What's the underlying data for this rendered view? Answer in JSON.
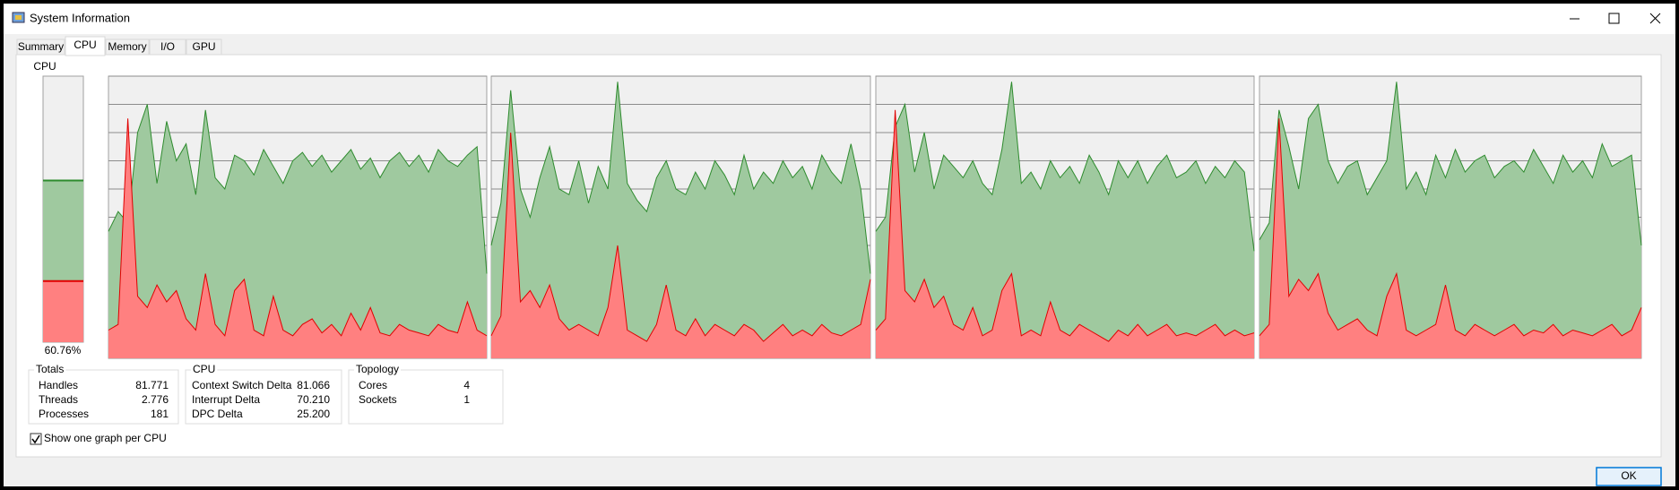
{
  "window": {
    "title": "System Information",
    "ok": "OK"
  },
  "tabs": [
    "Summary",
    "CPU",
    "Memory",
    "I/O",
    "GPU"
  ],
  "cpu_meter": {
    "label": "CPU",
    "value": 60.76,
    "value_label": "60.76%",
    "kernel": 23
  },
  "chart_data": [
    {
      "type": "area",
      "ylim": [
        0,
        100
      ],
      "yticks": [
        0,
        10,
        20,
        30,
        40,
        50,
        60,
        70,
        80,
        90,
        100
      ],
      "grid": true,
      "series": [
        {
          "color": "#2e8b2e",
          "values": [
            45,
            52,
            48,
            80,
            90,
            62,
            84,
            70,
            76,
            58,
            88,
            64,
            60,
            72,
            70,
            65,
            74,
            68,
            62,
            70,
            73,
            68,
            72,
            66,
            70,
            74,
            67,
            71,
            64,
            70,
            73,
            68,
            72,
            66,
            74,
            70,
            68,
            72,
            75,
            30
          ]
        },
        {
          "color": "#e00000",
          "values": [
            10,
            12,
            85,
            22,
            18,
            26,
            20,
            24,
            14,
            10,
            30,
            12,
            8,
            24,
            28,
            10,
            8,
            22,
            10,
            8,
            12,
            14,
            9,
            12,
            8,
            16,
            10,
            18,
            9,
            8,
            12,
            10,
            9,
            8,
            12,
            10,
            9,
            20,
            10,
            8
          ]
        }
      ]
    },
    {
      "type": "area",
      "ylim": [
        0,
        100
      ],
      "yticks": [
        0,
        10,
        20,
        30,
        40,
        50,
        60,
        70,
        80,
        90,
        100
      ],
      "grid": true,
      "series": [
        {
          "color": "#2e8b2e",
          "values": [
            40,
            55,
            95,
            60,
            50,
            64,
            75,
            60,
            58,
            70,
            55,
            68,
            60,
            98,
            62,
            56,
            52,
            64,
            70,
            60,
            58,
            66,
            60,
            70,
            65,
            58,
            72,
            60,
            66,
            62,
            70,
            64,
            68,
            60,
            72,
            66,
            62,
            76,
            60,
            30
          ]
        },
        {
          "color": "#e00000",
          "values": [
            8,
            15,
            80,
            20,
            24,
            18,
            26,
            14,
            10,
            12,
            10,
            8,
            18,
            40,
            10,
            8,
            6,
            12,
            26,
            10,
            8,
            14,
            8,
            12,
            10,
            8,
            12,
            10,
            6,
            9,
            12,
            8,
            10,
            8,
            12,
            9,
            8,
            10,
            12,
            28
          ]
        }
      ]
    },
    {
      "type": "area",
      "ylim": [
        0,
        100
      ],
      "yticks": [
        0,
        10,
        20,
        30,
        40,
        50,
        60,
        70,
        80,
        90,
        100
      ],
      "grid": true,
      "series": [
        {
          "color": "#2e8b2e",
          "values": [
            45,
            50,
            82,
            90,
            66,
            80,
            60,
            72,
            68,
            64,
            70,
            62,
            58,
            74,
            98,
            62,
            66,
            60,
            70,
            64,
            68,
            62,
            72,
            66,
            58,
            70,
            64,
            70,
            62,
            68,
            72,
            64,
            66,
            70,
            62,
            68,
            64,
            70,
            66,
            38
          ]
        },
        {
          "color": "#e00000",
          "values": [
            10,
            14,
            88,
            24,
            20,
            28,
            18,
            22,
            12,
            10,
            18,
            8,
            10,
            24,
            30,
            8,
            10,
            8,
            20,
            10,
            8,
            12,
            10,
            8,
            6,
            10,
            8,
            12,
            8,
            10,
            12,
            8,
            9,
            8,
            10,
            12,
            8,
            10,
            8,
            9
          ]
        }
      ]
    },
    {
      "type": "area",
      "ylim": [
        0,
        100
      ],
      "yticks": [
        0,
        10,
        20,
        30,
        40,
        50,
        60,
        70,
        80,
        90,
        100
      ],
      "grid": true,
      "series": [
        {
          "color": "#2e8b2e",
          "values": [
            42,
            48,
            88,
            75,
            60,
            85,
            90,
            70,
            62,
            68,
            70,
            58,
            64,
            70,
            98,
            60,
            66,
            58,
            72,
            64,
            74,
            66,
            70,
            72,
            64,
            68,
            70,
            66,
            74,
            68,
            62,
            72,
            66,
            70,
            64,
            76,
            68,
            70,
            72,
            40
          ]
        },
        {
          "color": "#e00000",
          "values": [
            8,
            12,
            85,
            22,
            28,
            24,
            30,
            16,
            10,
            12,
            14,
            10,
            8,
            22,
            30,
            10,
            8,
            10,
            12,
            26,
            10,
            8,
            12,
            10,
            8,
            10,
            12,
            8,
            10,
            9,
            12,
            8,
            10,
            9,
            8,
            10,
            12,
            8,
            10,
            18
          ]
        }
      ]
    }
  ],
  "totals": {
    "title": "Totals",
    "rows": [
      [
        "Handles",
        "81.771"
      ],
      [
        "Threads",
        "2.776"
      ],
      [
        "Processes",
        "181"
      ]
    ]
  },
  "cpu_stats": {
    "title": "CPU",
    "rows": [
      [
        "Context Switch Delta",
        "81.066"
      ],
      [
        "Interrupt Delta",
        "70.210"
      ],
      [
        "DPC Delta",
        "25.200"
      ]
    ]
  },
  "topology": {
    "title": "Topology",
    "rows": [
      [
        "Cores",
        "4"
      ],
      [
        "Sockets",
        "1"
      ]
    ]
  },
  "checkbox": {
    "label": "Show one graph per CPU",
    "checked": true
  }
}
